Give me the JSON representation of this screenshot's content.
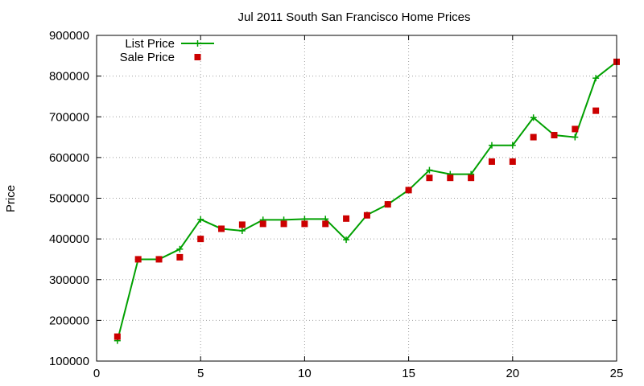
{
  "chart_data": {
    "type": "line",
    "title": "Jul 2011 South San Francisco Home Prices",
    "xlabel": "",
    "ylabel": "Price",
    "xlim": [
      0,
      25
    ],
    "ylim": [
      100000,
      900000
    ],
    "xticks": [
      0,
      5,
      10,
      15,
      20,
      25
    ],
    "yticks": [
      100000,
      200000,
      300000,
      400000,
      500000,
      600000,
      700000,
      800000,
      900000
    ],
    "grid": true,
    "legend_position": "top-left",
    "series": [
      {
        "name": "List Price",
        "style": "line-with-plus-markers",
        "color": "#00a000",
        "x": [
          1,
          2,
          3,
          4,
          5,
          6,
          7,
          8,
          9,
          10,
          11,
          12,
          13,
          14,
          15,
          16,
          17,
          18,
          19,
          20,
          21,
          22,
          23,
          24,
          25
        ],
        "values": [
          150000,
          350000,
          350000,
          375000,
          448000,
          425000,
          420000,
          447000,
          447000,
          449000,
          449000,
          398000,
          459000,
          485000,
          520000,
          569000,
          559000,
          559000,
          630000,
          630000,
          698000,
          655000,
          650000,
          795000,
          835000
        ]
      },
      {
        "name": "Sale Price",
        "style": "square-markers",
        "color": "#cc0000",
        "x": [
          1,
          2,
          3,
          4,
          5,
          6,
          7,
          8,
          9,
          10,
          11,
          12,
          13,
          14,
          15,
          16,
          17,
          18,
          19,
          20,
          21,
          22,
          23,
          24,
          25
        ],
        "values": [
          160000,
          350000,
          350000,
          355000,
          400000,
          425000,
          435000,
          437000,
          437000,
          437000,
          437000,
          450000,
          458000,
          485000,
          520000,
          550000,
          550000,
          550000,
          590000,
          590000,
          650000,
          655000,
          670000,
          715000,
          835000
        ]
      }
    ]
  }
}
